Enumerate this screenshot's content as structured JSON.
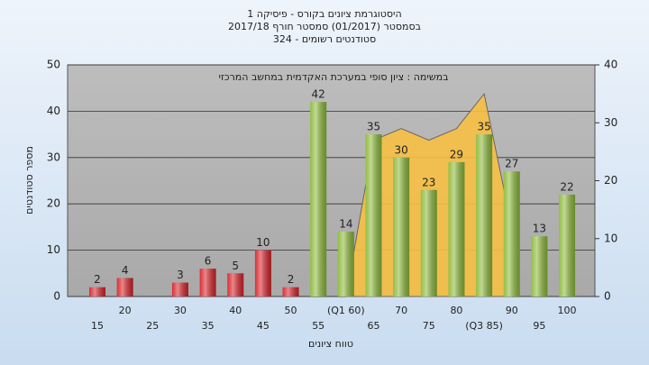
{
  "chart_data": {
    "type": "bar",
    "title": [
      "היסטוגרמת ציונים בקורס - פיסיקה 1",
      "בסמסטר  (01/2017)  סמסטר חורף 2017/18",
      "סטודנטים רשומים - 324"
    ],
    "annotation": "במשימה : ציון סופי במערכת האקדמית במחשב המרכזי",
    "y_label": "מספר סטודנטים",
    "x_label": "טווח ציונים",
    "categories": [
      "15",
      "20",
      "25",
      "30",
      "35",
      "40",
      "45",
      "50",
      "55",
      "(Q1 60)",
      "65",
      "70",
      "75",
      "80",
      "(Q3 85)",
      "90",
      "95",
      "100"
    ],
    "values": [
      2,
      4,
      null,
      3,
      6,
      5,
      10,
      2,
      42,
      14,
      35,
      30,
      23,
      29,
      35,
      27,
      13,
      22
    ],
    "colors": [
      "#d8232a",
      "#d8232a",
      "#d8232a",
      "#d8232a",
      "#d8232a",
      "#d8232a",
      "#d8232a",
      "#d8232a",
      "#8dba3a",
      "#8dba3a",
      "#8dba3a",
      "#8dba3a",
      "#8dba3a",
      "#8dba3a",
      "#8dba3a",
      "#8dba3a",
      "#8dba3a",
      "#8dba3a"
    ],
    "area": {
      "values": [
        null,
        null,
        null,
        null,
        null,
        null,
        null,
        null,
        null,
        0,
        27,
        29,
        27,
        29,
        35,
        12,
        null,
        null
      ],
      "color": "#f7c044",
      "axis": "y2"
    },
    "ylim": [
      0,
      50
    ],
    "yticks": [
      0,
      10,
      20,
      30,
      40,
      50
    ],
    "y2lim": [
      0,
      40
    ],
    "y2ticks": [
      0,
      10,
      20,
      30,
      40
    ],
    "grid": true
  }
}
